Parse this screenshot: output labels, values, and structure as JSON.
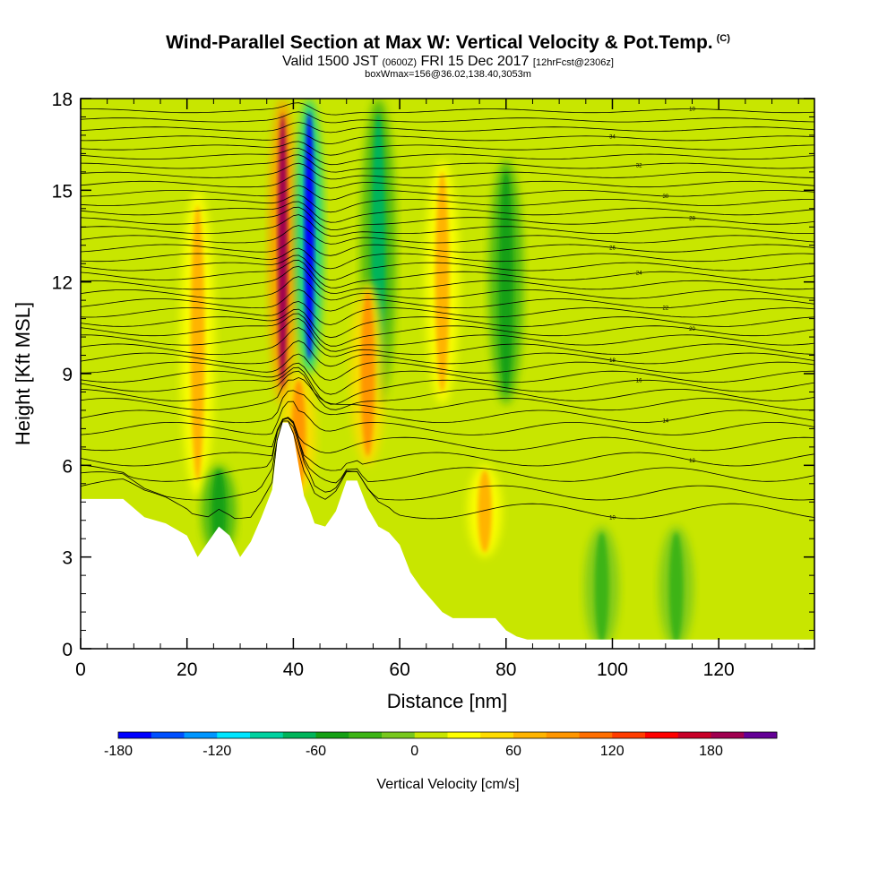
{
  "header": {
    "title": "Wind-Parallel Section at Max W: Vertical Velocity & Pot.Temp.",
    "copyright": "(C)",
    "valid_prefix": "Valid 1500 JST",
    "valid_utc": "(0600Z)",
    "valid_date": "FRI 15 Dec 2017",
    "forecast": "[12hrFcst@2306z]",
    "box_info": "boxWmax=156@36.02,138.40,3053m"
  },
  "chart_data": {
    "type": "heatmap",
    "xlabel": "Distance [nm]",
    "ylabel": "Height [Kft MSL]",
    "xlim": [
      0,
      138
    ],
    "ylim": [
      0,
      18
    ],
    "x_ticks": [
      "0",
      "20",
      "40",
      "60",
      "80",
      "100",
      "120"
    ],
    "y_ticks": [
      "0",
      "3",
      "6",
      "9",
      "12",
      "15",
      "18"
    ],
    "colorbar": {
      "label": "Vertical Velocity [cm/s]",
      "min": -180,
      "max": 220,
      "step": 20,
      "tick_labels": [
        "-180",
        "-120",
        "-60",
        "0",
        "60",
        "120",
        "180"
      ],
      "colors": [
        "#0000ff",
        "#0050ff",
        "#0096ff",
        "#00e6ff",
        "#00d2a0",
        "#00b45a",
        "#14a014",
        "#3cb414",
        "#78c81e",
        "#c8e600",
        "#ffff00",
        "#ffdc00",
        "#ffb400",
        "#ff9600",
        "#ff6e00",
        "#ff3c00",
        "#ff0000",
        "#c80028",
        "#a00050",
        "#640096"
      ]
    },
    "vertical_velocity_features": [
      {
        "x": 38,
        "z_bottom": 8,
        "z_top": 18,
        "w": 180
      },
      {
        "x": 43,
        "z_bottom": 9,
        "z_top": 18,
        "w": -180
      },
      {
        "x": 41,
        "z_bottom": 5,
        "z_top": 9,
        "w": 80
      },
      {
        "x": 22,
        "z_bottom": 5,
        "z_top": 15,
        "w": 70
      },
      {
        "x": 26,
        "z_bottom": 3,
        "z_top": 6,
        "w": -60
      },
      {
        "x": 56,
        "z_bottom": 8,
        "z_top": 18,
        "w": -80
      },
      {
        "x": 54,
        "z_bottom": 6,
        "z_top": 12,
        "w": 80
      },
      {
        "x": 68,
        "z_bottom": 8,
        "z_top": 16,
        "w": 70
      },
      {
        "x": 76,
        "z_bottom": 3,
        "z_top": 6,
        "w": 60
      },
      {
        "x": 80,
        "z_bottom": 8,
        "z_top": 16,
        "w": -60
      },
      {
        "x": 98,
        "z_bottom": 0,
        "z_top": 4,
        "w": -40
      },
      {
        "x": 112,
        "z_bottom": 0,
        "z_top": 4,
        "w": -40
      }
    ],
    "terrain": {
      "x": [
        0,
        8,
        8,
        12,
        16,
        20,
        22,
        24,
        26,
        28,
        30,
        32,
        34,
        36,
        37,
        38,
        39,
        40,
        41,
        42,
        43,
        44,
        46,
        48,
        50,
        52,
        54,
        56,
        58,
        60,
        62,
        64,
        66,
        68,
        70,
        72,
        74,
        76,
        78,
        80,
        82,
        84,
        86,
        138
      ],
      "z": [
        4.9,
        4.9,
        4.9,
        4.3,
        4.1,
        3.7,
        3.0,
        3.5,
        4.0,
        3.7,
        3.0,
        3.5,
        4.3,
        5.2,
        6.8,
        7.4,
        7.4,
        7.0,
        6.0,
        5.0,
        4.6,
        4.1,
        4.0,
        4.5,
        5.5,
        5.5,
        4.6,
        4.0,
        3.8,
        3.4,
        2.5,
        2.0,
        1.6,
        1.2,
        1.0,
        1.0,
        1.0,
        1.0,
        1.0,
        0.6,
        0.4,
        0.3,
        0.3,
        0.3
      ]
    },
    "isentropes": {
      "base_heights": [
        4.5,
        5.1,
        5.7,
        6.2,
        6.7,
        7.2,
        7.6,
        8.0,
        8.3,
        8.6,
        8.9,
        9.2,
        9.5,
        9.8,
        10.1,
        10.4,
        10.7,
        11.0,
        11.3,
        11.6,
        11.9,
        12.2,
        12.5,
        12.8,
        13.1,
        13.4,
        13.7,
        14.0,
        14.3,
        14.6,
        14.9,
        15.2,
        15.5,
        15.8,
        16.1,
        16.4,
        16.7,
        17.0,
        17.3,
        17.6
      ],
      "labels": [
        "10",
        "12",
        "14",
        "16",
        "18",
        "20",
        "22",
        "24",
        "26",
        "28",
        "30",
        "32",
        "34"
      ]
    }
  },
  "colors": {
    "background": "#ffffff",
    "terrain": "#ffffff",
    "contour": "#000000",
    "axis": "#000000"
  }
}
